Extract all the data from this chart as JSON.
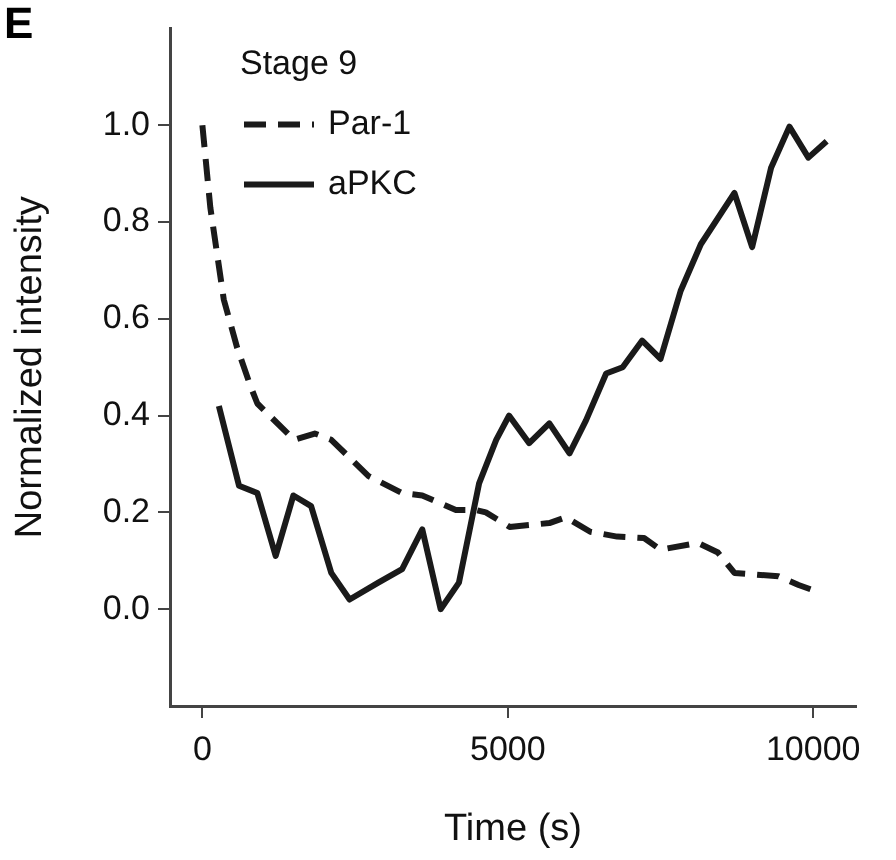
{
  "chart_data": {
    "type": "line",
    "xlabel": "Time (s)",
    "ylabel": "Normalized intensity",
    "legend_title": "Stage 9",
    "legend": "top left",
    "grid": false,
    "marker": "none",
    "annotations": [
      "E"
    ],
    "xlim": [
      -530,
      10700
    ],
    "xticks": [
      0,
      5000,
      10000
    ],
    "ylim": [
      -0.2,
      1.2
    ],
    "yticks": [
      {
        "value": 0,
        "label": "0.0"
      },
      {
        "value": 0.2,
        "label": "0.2"
      },
      {
        "value": 0.4,
        "label": "0.4"
      },
      {
        "value": 0.6,
        "label": "0.6"
      },
      {
        "value": 0.8,
        "label": "0.8"
      },
      {
        "value": 1,
        "label": "1.0"
      }
    ],
    "series": [
      {
        "name": "Par-1",
        "color": "#1a1a1a",
        "line_style": "dashed",
        "x": [
          0,
          130,
          350,
          570,
          790,
          900,
          1500,
          1840,
          2110,
          2720,
          3270,
          3600,
          4150,
          4480,
          4640,
          5030,
          5680,
          5950,
          6350,
          6790,
          7230,
          7500,
          8110,
          8440,
          8710,
          9430,
          9760,
          10090
        ],
        "values": [
          1.0,
          0.83,
          0.64,
          0.54,
          0.46,
          0.425,
          0.35,
          0.363,
          0.35,
          0.275,
          0.24,
          0.235,
          0.205,
          0.205,
          0.2,
          0.17,
          0.178,
          0.19,
          0.16,
          0.15,
          0.147,
          0.123,
          0.137,
          0.117,
          0.075,
          0.068,
          0.05,
          0.035
        ]
      },
      {
        "name": "aPKC",
        "color": "#1a1a1a",
        "line_style": "solid",
        "x": [
          270,
          600,
          900,
          1200,
          1490,
          1780,
          2110,
          2410,
          2880,
          3270,
          3600,
          3900,
          4200,
          4530,
          4810,
          5020,
          5350,
          5680,
          6010,
          6280,
          6610,
          6880,
          7200,
          7500,
          7830,
          8160,
          8710,
          9000,
          9310,
          9610,
          9920,
          10220
        ],
        "values": [
          0.42,
          0.255,
          0.24,
          0.11,
          0.235,
          0.213,
          0.075,
          0.02,
          0.055,
          0.083,
          0.165,
          0.0,
          0.055,
          0.26,
          0.35,
          0.4,
          0.343,
          0.384,
          0.322,
          0.39,
          0.487,
          0.5,
          0.555,
          0.517,
          0.658,
          0.754,
          0.86,
          0.748,
          0.912,
          0.997,
          0.933,
          0.967
        ]
      }
    ]
  }
}
